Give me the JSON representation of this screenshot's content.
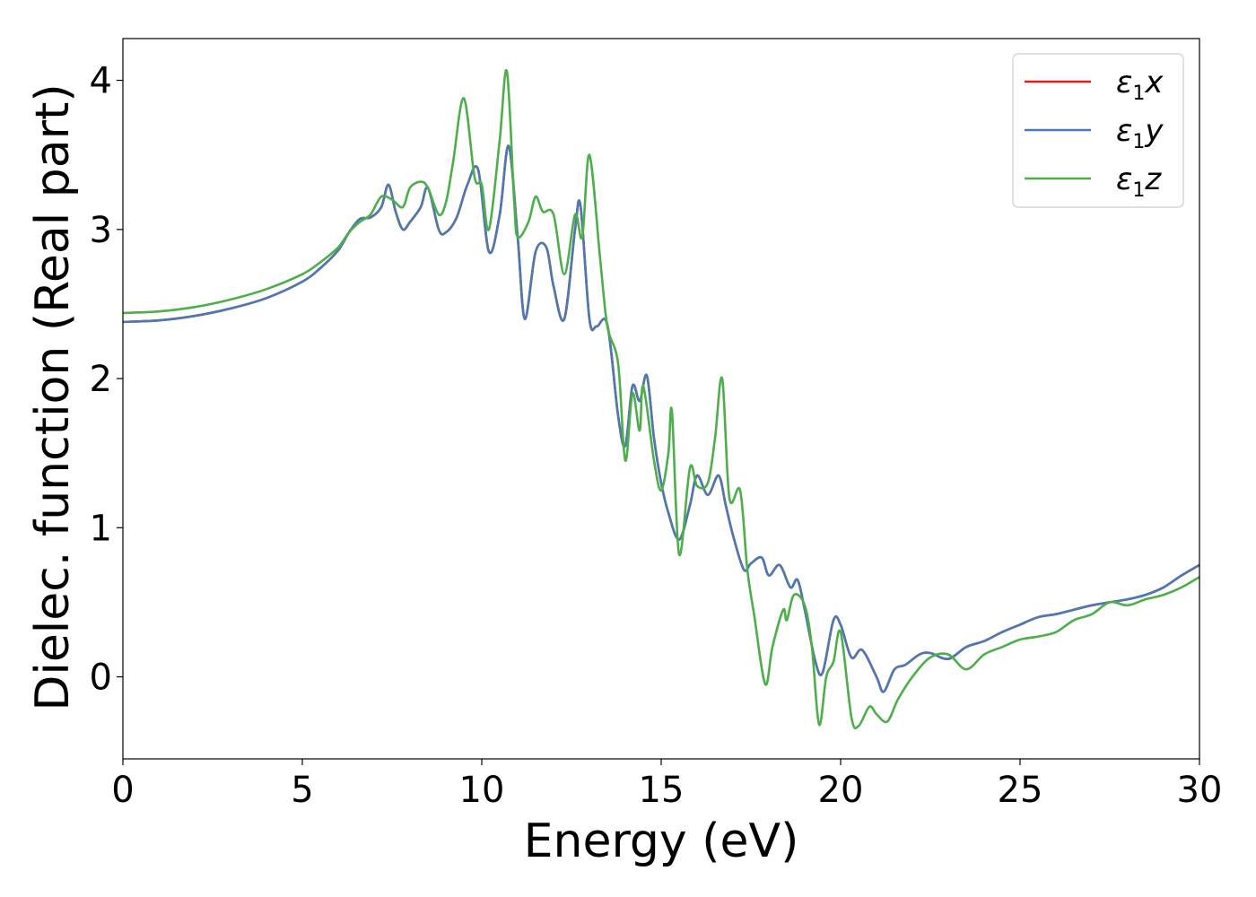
{
  "chart_data": {
    "type": "line",
    "xlabel": "Energy (eV)",
    "ylabel": "Dielec. function (Real part)",
    "xlim": [
      0,
      30
    ],
    "ylim": [
      -0.55,
      4.28
    ],
    "xticks": [
      0,
      5,
      10,
      15,
      20,
      25,
      30
    ],
    "yticks": [
      0,
      1,
      2,
      3,
      4
    ],
    "grid": false,
    "legend_position": "top-right",
    "series": [
      {
        "name": "ε₁x",
        "legend_main": "ε",
        "legend_sub": "1",
        "legend_tail": "x",
        "color": "#e41a1c",
        "x": [
          0,
          1,
          2,
          3,
          4,
          5,
          5.5,
          6,
          6.3,
          6.6,
          6.9,
          7.2,
          7.4,
          7.6,
          7.8,
          8.0,
          8.3,
          8.5,
          8.8,
          9.0,
          9.3,
          9.6,
          9.9,
          10.2,
          10.5,
          10.75,
          11.0,
          11.2,
          11.5,
          11.8,
          12.0,
          12.3,
          12.6,
          12.75,
          13.0,
          13.2,
          13.5,
          13.8,
          14.0,
          14.2,
          14.4,
          14.6,
          14.8,
          15.0,
          15.2,
          15.5,
          15.8,
          16.0,
          16.3,
          16.6,
          16.8,
          17.0,
          17.3,
          17.5,
          17.8,
          18.0,
          18.3,
          18.6,
          18.8,
          19.0,
          19.3,
          19.5,
          19.8,
          20.0,
          20.3,
          20.6,
          21.0,
          21.2,
          21.5,
          21.8,
          22.2,
          22.5,
          23.0,
          23.5,
          24.0,
          24.5,
          25.0,
          25.5,
          26.0,
          26.5,
          27.0,
          27.5,
          28.0,
          28.5,
          29.0,
          29.5,
          30.0
        ],
        "y": [
          2.38,
          2.39,
          2.42,
          2.47,
          2.54,
          2.65,
          2.74,
          2.86,
          2.98,
          3.07,
          3.08,
          3.15,
          3.3,
          3.12,
          3.0,
          3.05,
          3.15,
          3.28,
          3.0,
          2.98,
          3.08,
          3.3,
          3.4,
          2.85,
          3.1,
          3.56,
          2.95,
          2.4,
          2.85,
          2.88,
          2.62,
          2.4,
          3.0,
          3.16,
          2.4,
          2.35,
          2.36,
          1.75,
          1.55,
          1.95,
          1.85,
          2.02,
          1.6,
          1.3,
          1.1,
          0.92,
          1.15,
          1.35,
          1.22,
          1.35,
          1.15,
          0.95,
          0.72,
          0.76,
          0.8,
          0.68,
          0.75,
          0.6,
          0.65,
          0.45,
          0.1,
          0.03,
          0.38,
          0.35,
          0.13,
          0.18,
          0.0,
          -0.1,
          0.05,
          0.08,
          0.15,
          0.16,
          0.12,
          0.2,
          0.24,
          0.3,
          0.35,
          0.4,
          0.42,
          0.45,
          0.48,
          0.5,
          0.52,
          0.55,
          0.6,
          0.68,
          0.75
        ]
      },
      {
        "name": "ε₁y",
        "legend_main": "ε",
        "legend_sub": "1",
        "legend_tail": "y",
        "color": "#4a7ab3",
        "x": [
          0,
          1,
          2,
          3,
          4,
          5,
          5.5,
          6,
          6.3,
          6.6,
          6.9,
          7.2,
          7.4,
          7.6,
          7.8,
          8.0,
          8.3,
          8.5,
          8.8,
          9.0,
          9.3,
          9.6,
          9.9,
          10.2,
          10.5,
          10.75,
          11.0,
          11.2,
          11.5,
          11.8,
          12.0,
          12.3,
          12.6,
          12.75,
          13.0,
          13.2,
          13.5,
          13.8,
          14.0,
          14.2,
          14.4,
          14.6,
          14.8,
          15.0,
          15.2,
          15.5,
          15.8,
          16.0,
          16.3,
          16.6,
          16.8,
          17.0,
          17.3,
          17.5,
          17.8,
          18.0,
          18.3,
          18.6,
          18.8,
          19.0,
          19.3,
          19.5,
          19.8,
          20.0,
          20.3,
          20.6,
          21.0,
          21.2,
          21.5,
          21.8,
          22.2,
          22.5,
          23.0,
          23.5,
          24.0,
          24.5,
          25.0,
          25.5,
          26.0,
          26.5,
          27.0,
          27.5,
          28.0,
          28.5,
          29.0,
          29.5,
          30.0
        ],
        "y": [
          2.38,
          2.39,
          2.42,
          2.47,
          2.54,
          2.65,
          2.74,
          2.86,
          2.98,
          3.07,
          3.08,
          3.15,
          3.3,
          3.12,
          3.0,
          3.05,
          3.15,
          3.28,
          3.0,
          2.98,
          3.08,
          3.3,
          3.4,
          2.85,
          3.1,
          3.56,
          2.95,
          2.4,
          2.85,
          2.88,
          2.62,
          2.4,
          3.0,
          3.16,
          2.4,
          2.35,
          2.36,
          1.75,
          1.55,
          1.95,
          1.85,
          2.02,
          1.6,
          1.3,
          1.1,
          0.92,
          1.15,
          1.35,
          1.22,
          1.35,
          1.15,
          0.95,
          0.72,
          0.76,
          0.8,
          0.68,
          0.75,
          0.6,
          0.65,
          0.45,
          0.1,
          0.03,
          0.38,
          0.35,
          0.13,
          0.18,
          0.0,
          -0.1,
          0.05,
          0.08,
          0.15,
          0.16,
          0.12,
          0.2,
          0.24,
          0.3,
          0.35,
          0.4,
          0.42,
          0.45,
          0.48,
          0.5,
          0.52,
          0.55,
          0.6,
          0.68,
          0.75
        ]
      },
      {
        "name": "ε₁z",
        "legend_main": "ε",
        "legend_sub": "1",
        "legend_tail": "z",
        "color": "#4daf4a",
        "x": [
          0,
          1,
          2,
          3,
          4,
          5,
          5.5,
          6,
          6.3,
          6.6,
          6.9,
          7.2,
          7.5,
          7.8,
          8.0,
          8.3,
          8.5,
          8.8,
          9.0,
          9.2,
          9.5,
          9.8,
          10.0,
          10.2,
          10.5,
          10.7,
          10.9,
          11.0,
          11.3,
          11.5,
          11.7,
          12.0,
          12.3,
          12.6,
          12.8,
          13.0,
          13.3,
          13.5,
          13.8,
          14.0,
          14.2,
          14.4,
          14.5,
          14.8,
          15.0,
          15.2,
          15.3,
          15.5,
          15.8,
          16.0,
          16.3,
          16.5,
          16.7,
          16.9,
          17.2,
          17.4,
          17.6,
          17.9,
          18.1,
          18.4,
          18.5,
          18.7,
          19.0,
          19.2,
          19.4,
          19.6,
          19.8,
          20.0,
          20.3,
          20.5,
          20.8,
          21.0,
          21.3,
          21.6,
          22.0,
          22.5,
          23.0,
          23.5,
          24.0,
          24.5,
          25.0,
          25.5,
          26.0,
          26.5,
          27.0,
          27.5,
          28.0,
          28.5,
          29.0,
          29.5,
          30.0
        ],
        "y": [
          2.44,
          2.45,
          2.48,
          2.53,
          2.6,
          2.7,
          2.78,
          2.88,
          2.98,
          3.05,
          3.1,
          3.22,
          3.2,
          3.15,
          3.28,
          3.32,
          3.28,
          3.1,
          3.18,
          3.45,
          3.88,
          3.35,
          3.3,
          3.0,
          3.6,
          4.06,
          3.2,
          2.95,
          3.05,
          3.22,
          3.12,
          3.1,
          2.7,
          3.1,
          2.95,
          3.5,
          2.8,
          2.35,
          2.1,
          1.45,
          1.9,
          1.65,
          1.95,
          1.45,
          1.25,
          1.5,
          1.78,
          0.82,
          1.4,
          1.28,
          1.3,
          1.6,
          2.0,
          1.2,
          1.25,
          0.72,
          0.4,
          -0.05,
          0.2,
          0.45,
          0.38,
          0.55,
          0.48,
          0.2,
          -0.32,
          0.0,
          0.1,
          0.3,
          -0.27,
          -0.33,
          -0.2,
          -0.25,
          -0.3,
          -0.15,
          0.0,
          0.13,
          0.15,
          0.05,
          0.15,
          0.2,
          0.25,
          0.27,
          0.3,
          0.38,
          0.42,
          0.5,
          0.48,
          0.52,
          0.55,
          0.6,
          0.67
        ]
      }
    ]
  }
}
